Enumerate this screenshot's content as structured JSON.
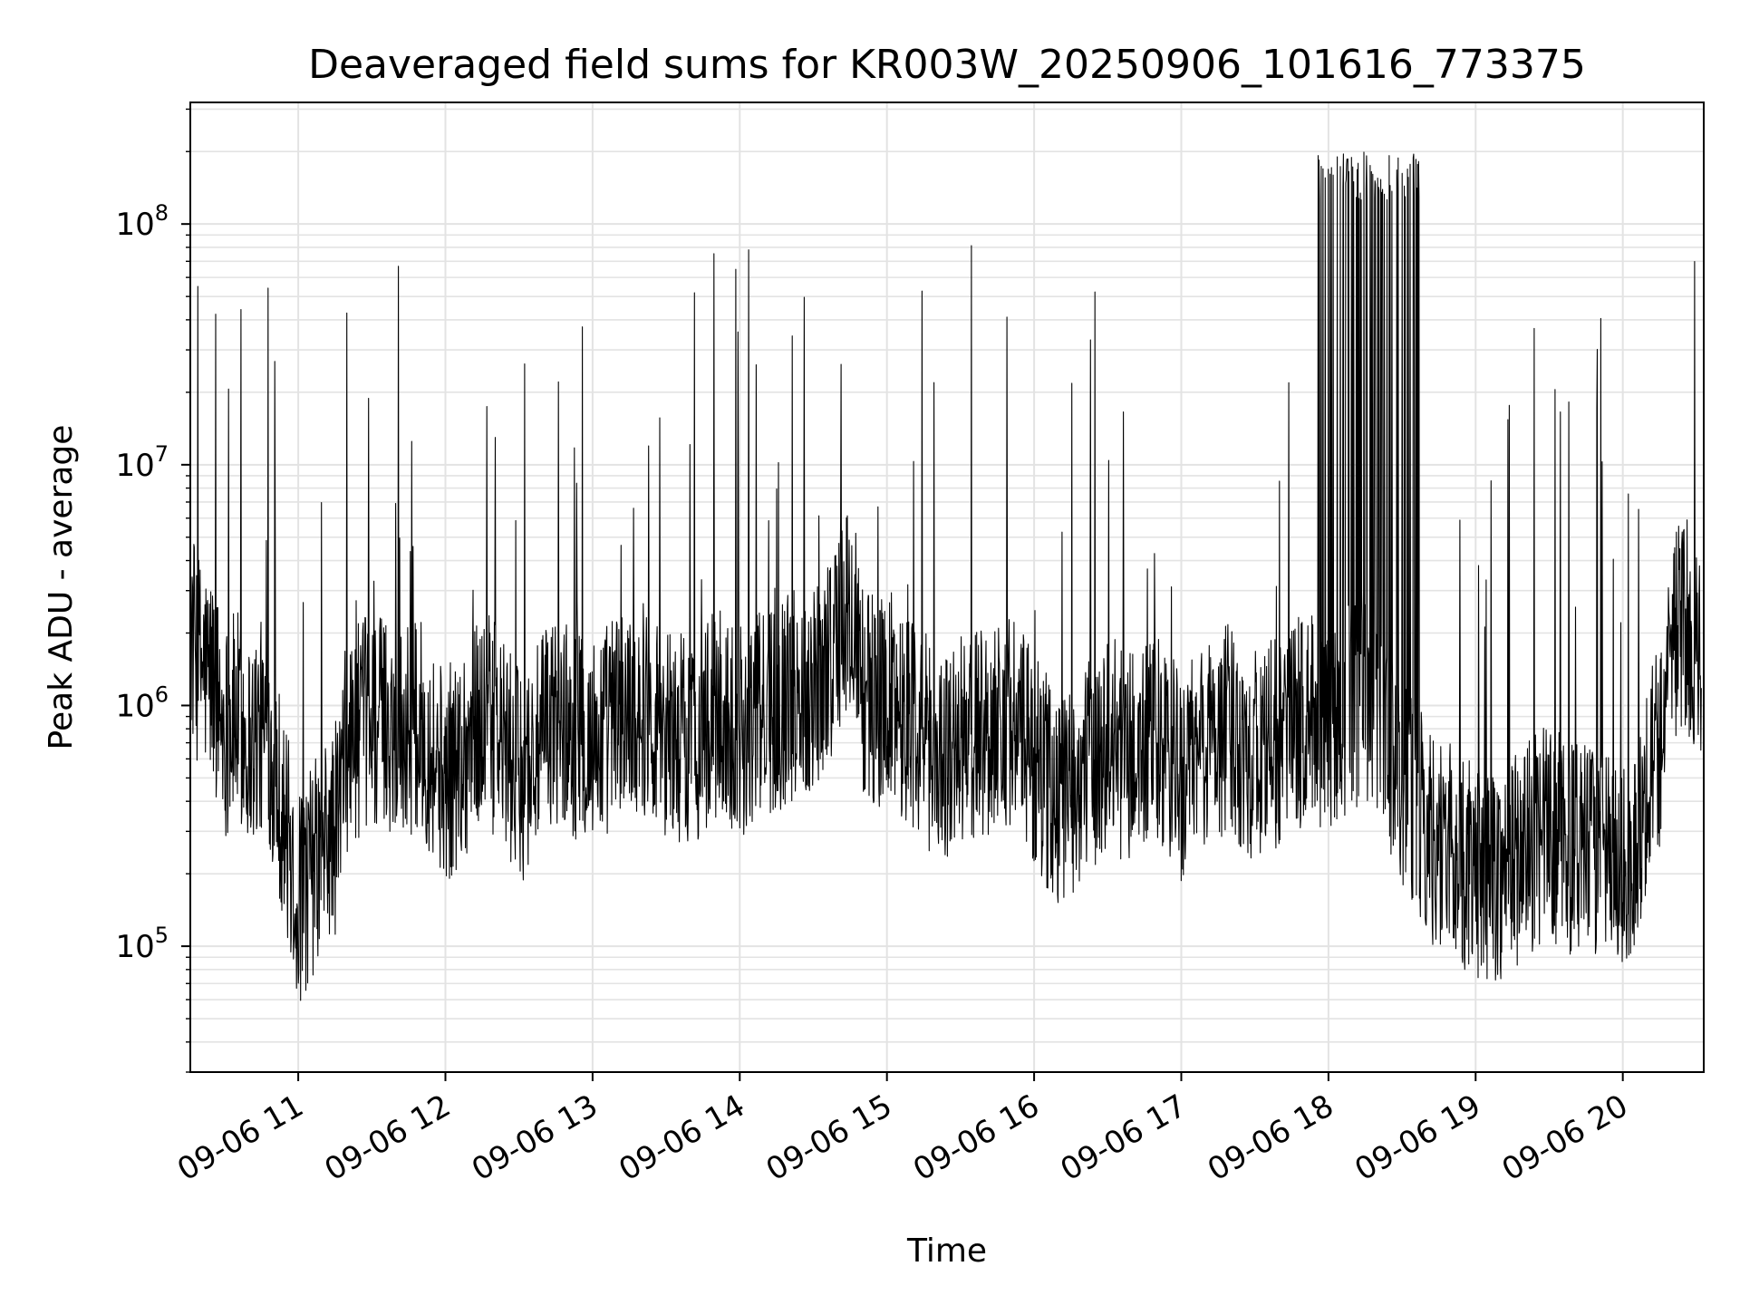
{
  "chart_data": {
    "type": "line",
    "title": "Deaveraged field sums for KR003W_20250906_101616_773375",
    "xlabel": "Time",
    "ylabel": "Peak ADU - average",
    "y_scale": "log",
    "grid": true,
    "line_color": "#000000",
    "xlim": [
      "2025-09-06T10:16:00",
      "2025-09-06T20:33:00"
    ],
    "ylim": [
      30000,
      320000000
    ],
    "x_ticks": [
      {
        "t": "2025-09-06T11:00:00",
        "label": "09-06 11"
      },
      {
        "t": "2025-09-06T12:00:00",
        "label": "09-06 12"
      },
      {
        "t": "2025-09-06T13:00:00",
        "label": "09-06 13"
      },
      {
        "t": "2025-09-06T14:00:00",
        "label": "09-06 14"
      },
      {
        "t": "2025-09-06T15:00:00",
        "label": "09-06 15"
      },
      {
        "t": "2025-09-06T16:00:00",
        "label": "09-06 16"
      },
      {
        "t": "2025-09-06T17:00:00",
        "label": "09-06 17"
      },
      {
        "t": "2025-09-06T18:00:00",
        "label": "09-06 18"
      },
      {
        "t": "2025-09-06T19:00:00",
        "label": "09-06 19"
      },
      {
        "t": "2025-09-06T20:00:00",
        "label": "09-06 20"
      }
    ],
    "y_ticks": [
      {
        "value": 100000,
        "base": "10",
        "exp": "5"
      },
      {
        "value": 1000000,
        "base": "10",
        "exp": "6"
      },
      {
        "value": 10000000,
        "base": "10",
        "exp": "7"
      },
      {
        "value": 100000000,
        "base": "10",
        "exp": "8"
      }
    ],
    "series": [
      {
        "x": [
          "2025-09-06T10:16",
          "2025-09-06T10:20",
          "2025-09-06T10:25",
          "2025-09-06T10:30",
          "2025-09-06T10:35",
          "2025-09-06T10:40",
          "2025-09-06T10:45",
          "2025-09-06T10:50",
          "2025-09-06T10:55",
          "2025-09-06T11:00",
          "2025-09-06T11:05",
          "2025-09-06T11:10",
          "2025-09-06T11:15",
          "2025-09-06T11:20",
          "2025-09-06T11:30",
          "2025-09-06T11:40",
          "2025-09-06T11:50",
          "2025-09-06T12:00",
          "2025-09-06T12:10",
          "2025-09-06T12:15",
          "2025-09-06T12:20",
          "2025-09-06T12:30",
          "2025-09-06T12:40",
          "2025-09-06T12:45",
          "2025-09-06T12:50",
          "2025-09-06T13:00",
          "2025-09-06T13:10",
          "2025-09-06T13:20",
          "2025-09-06T13:30",
          "2025-09-06T13:40",
          "2025-09-06T13:50",
          "2025-09-06T14:00",
          "2025-09-06T14:10",
          "2025-09-06T14:20",
          "2025-09-06T14:30",
          "2025-09-06T14:35",
          "2025-09-06T14:40",
          "2025-09-06T14:45",
          "2025-09-06T14:50",
          "2025-09-06T14:55",
          "2025-09-06T15:00",
          "2025-09-06T15:10",
          "2025-09-06T15:20",
          "2025-09-06T15:30",
          "2025-09-06T15:40",
          "2025-09-06T15:50",
          "2025-09-06T16:00",
          "2025-09-06T16:10",
          "2025-09-06T16:20",
          "2025-09-06T16:30",
          "2025-09-06T16:40",
          "2025-09-06T16:50",
          "2025-09-06T17:00",
          "2025-09-06T17:10",
          "2025-09-06T17:20",
          "2025-09-06T17:30",
          "2025-09-06T17:40",
          "2025-09-06T17:50",
          "2025-09-06T18:00",
          "2025-09-06T18:05",
          "2025-09-06T18:10",
          "2025-09-06T18:15",
          "2025-09-06T18:20",
          "2025-09-06T18:25",
          "2025-09-06T18:30",
          "2025-09-06T18:35",
          "2025-09-06T18:40",
          "2025-09-06T18:50",
          "2025-09-06T19:00",
          "2025-09-06T19:10",
          "2025-09-06T19:20",
          "2025-09-06T19:30",
          "2025-09-06T19:40",
          "2025-09-06T19:50",
          "2025-09-06T20:00",
          "2025-09-06T20:05",
          "2025-09-06T20:10",
          "2025-09-06T20:15",
          "2025-09-06T20:20",
          "2025-09-06T20:25",
          "2025-09-06T20:30"
        ],
        "y": [
          2000000,
          1500000,
          1300000,
          800000,
          900000,
          700000,
          800000,
          600000,
          300000,
          150000,
          200000,
          250000,
          300000,
          700000,
          900000,
          800000,
          800000,
          500000,
          700000,
          900000,
          800000,
          500000,
          700000,
          900000,
          800000,
          700000,
          900000,
          1000000,
          800000,
          700000,
          900000,
          800000,
          900000,
          1100000,
          1200000,
          1500000,
          2000000,
          2500000,
          1200000,
          1000000,
          1100000,
          900000,
          600000,
          700000,
          800000,
          900000,
          600000,
          400000,
          500000,
          700000,
          600000,
          700000,
          500000,
          700000,
          800000,
          600000,
          700000,
          900000,
          800000,
          900000,
          1000000,
          1100000,
          900000,
          700000,
          500000,
          400000,
          300000,
          250000,
          200000,
          200000,
          250000,
          300000,
          250000,
          250000,
          200000,
          250000,
          500000,
          700000,
          2000000,
          2200000,
          1800000
        ]
      }
    ]
  }
}
